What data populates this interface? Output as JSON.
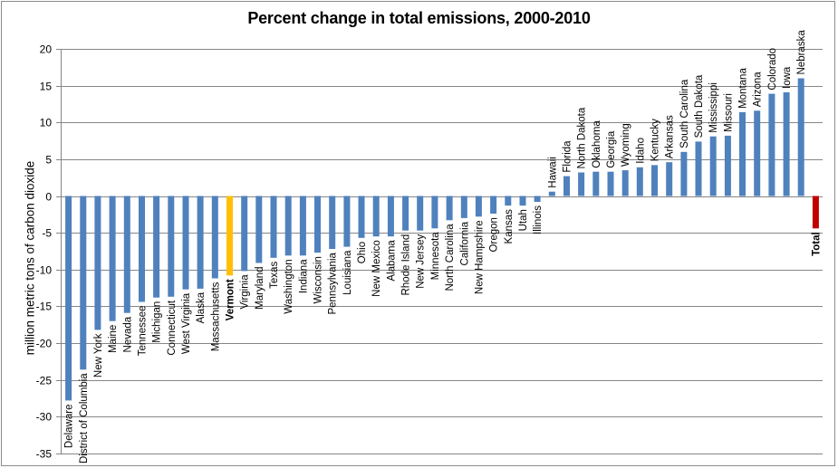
{
  "chart_data": {
    "type": "bar",
    "title": "Percent change in total emissions, 2000-2010",
    "xlabel": "",
    "ylabel": "million metric tons of carbon dioxide",
    "ylim": [
      -35,
      20
    ],
    "yticks": [
      20,
      15,
      10,
      5,
      0,
      -5,
      -10,
      -15,
      -20,
      -25,
      -30,
      -35
    ],
    "grid": true,
    "legend": "none",
    "colors": {
      "default": "#4F81BD",
      "highlight": "#FFC000",
      "total": "#C00000"
    },
    "categories": [
      "Delaware",
      "District of Columbia",
      "New York",
      "Maine",
      "Nevada",
      "Tennessee",
      "Michigan",
      "Connecticut",
      "West Virginia",
      "Alaska",
      "Massachusetts",
      "Vermont",
      "Virginia",
      "Maryland",
      "Texas",
      "Washington",
      "Indiana",
      "Wisconsin",
      "Pennsylvania",
      "Louisiana",
      "Ohio",
      "New Mexico",
      "Alabama",
      "Rhode Island",
      "New Jersey",
      "Minnesota",
      "North Carolina",
      "California",
      "New Hampshire",
      "Oregon",
      "Kansas",
      "Utah",
      "Illinois",
      "Hawaii",
      "Florida",
      "North Dakota",
      "Oklahoma",
      "Georgia",
      "Wyoming",
      "Idaho",
      "Kentucky",
      "Arkansas",
      "South Carolina",
      "South Dakota",
      "Mississippi",
      "Missouri",
      "Montana",
      "Arizona",
      "Colorado",
      "Iowa",
      "Nebraska",
      "Total"
    ],
    "values": [
      -27.8,
      -23.6,
      -18.2,
      -17.0,
      -15.9,
      -14.4,
      -13.8,
      -13.7,
      -12.7,
      -12.6,
      -11.2,
      -10.8,
      -10.2,
      -9.1,
      -8.4,
      -8.1,
      -8.1,
      -7.7,
      -7.2,
      -6.9,
      -5.7,
      -5.5,
      -5.5,
      -4.7,
      -4.7,
      -4.4,
      -3.3,
      -3.0,
      -2.8,
      -2.4,
      -1.3,
      -1.3,
      -0.8,
      0.6,
      2.7,
      3.2,
      3.3,
      3.3,
      3.5,
      3.9,
      4.2,
      4.6,
      6.0,
      7.4,
      8.1,
      8.2,
      11.4,
      11.6,
      13.9,
      14.1,
      16.0,
      -4.4
    ],
    "highlighted_category": "Vermont",
    "total_category": "Total"
  }
}
